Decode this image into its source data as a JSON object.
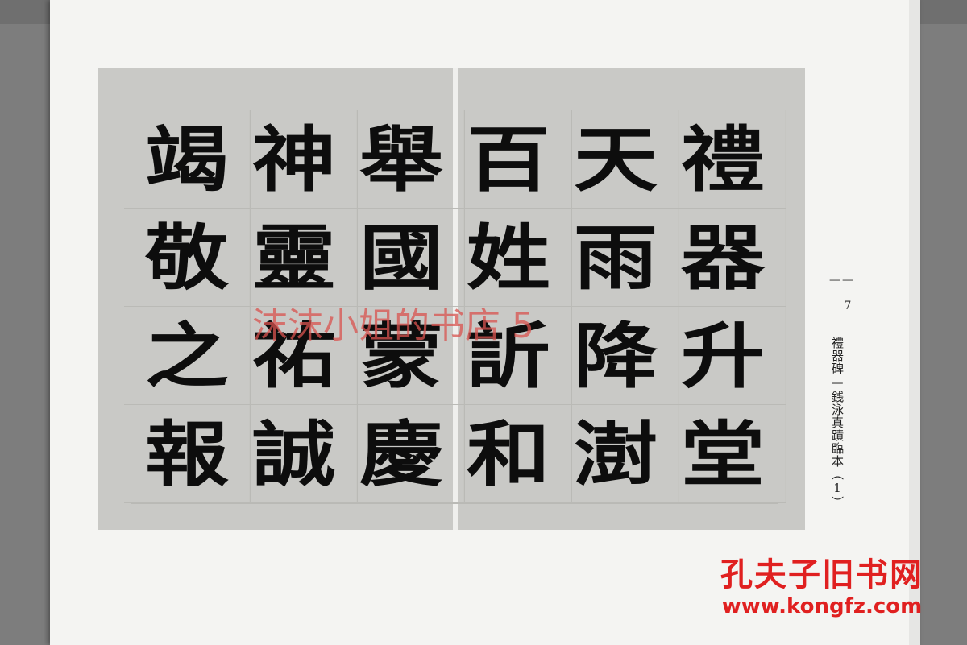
{
  "calligraphy": {
    "columns": [
      [
        "禮",
        "器",
        "升",
        "堂"
      ],
      [
        "天",
        "雨",
        "降",
        "澍"
      ],
      [
        "百",
        "姓",
        "訢",
        "和"
      ],
      [
        "舉",
        "國",
        "蒙",
        "慶"
      ],
      [
        "神",
        "靈",
        "祐",
        "誠"
      ],
      [
        "竭",
        "敬",
        "之",
        "報"
      ]
    ]
  },
  "caption": "禮器碑—銭泳真蹟臨本（1）",
  "page_number": "— 7 —",
  "watermarks": {
    "shop": "沫沫小姐的书店 5",
    "site_name": "孔夫子旧书网",
    "site_url": "www.kongfz.com"
  }
}
